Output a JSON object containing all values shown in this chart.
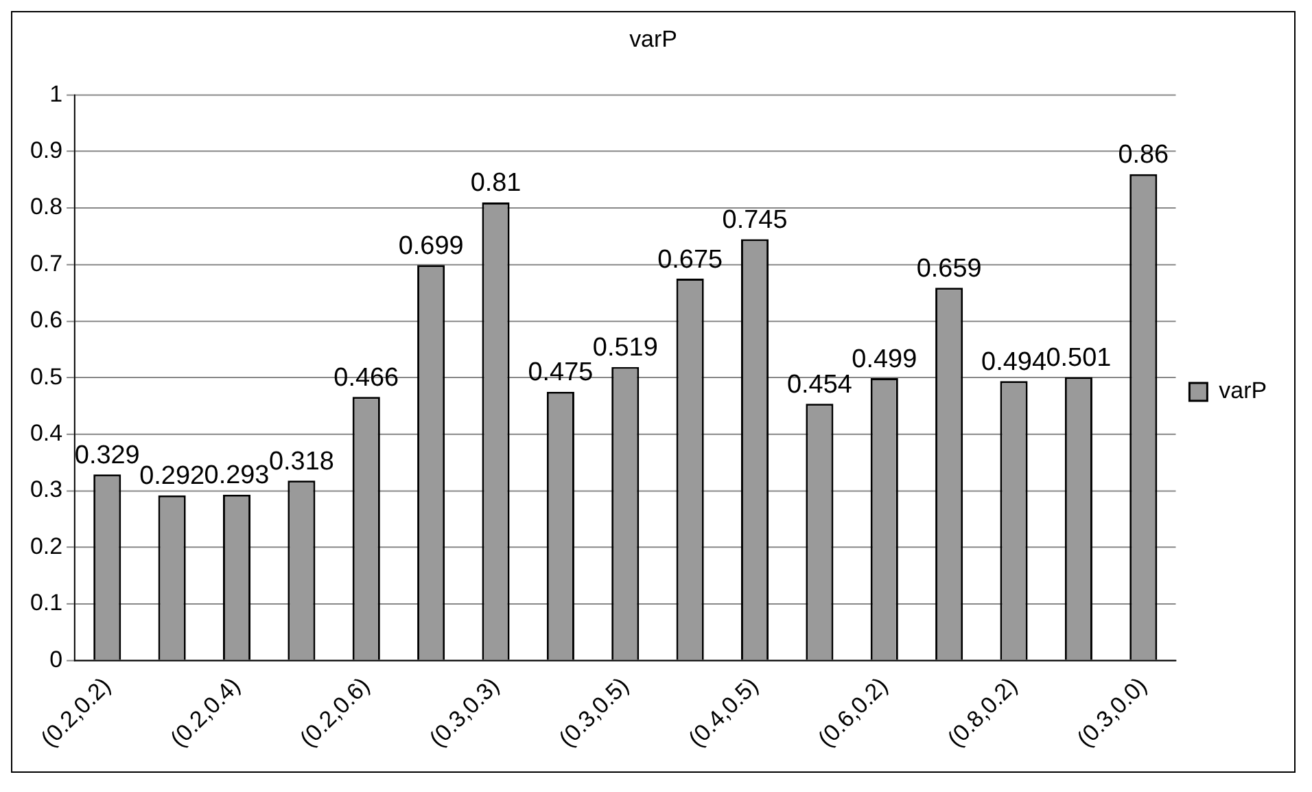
{
  "chart_data": {
    "type": "bar",
    "title": "varP",
    "categories": [
      "(0.2,0.2)",
      null,
      "(0.2,0.4)",
      null,
      "(0.2,0.6)",
      null,
      "(0.3,0.3)",
      null,
      "(0.3,0.5)",
      null,
      "(0.4,0.5)",
      null,
      "(0.6,0.2)",
      null,
      "(0.8,0.2)",
      null,
      "(0.3,0.0)"
    ],
    "series": [
      {
        "name": "varP",
        "color": "#9a9a9a",
        "values": [
          0.329,
          0.292,
          0.293,
          0.318,
          0.466,
          0.699,
          0.81,
          0.475,
          0.519,
          0.675,
          0.745,
          0.454,
          0.499,
          0.659,
          0.494,
          0.501,
          0.86
        ]
      }
    ],
    "ylim": [
      0,
      1
    ],
    "yticks": [
      0,
      0.1,
      0.2,
      0.3,
      0.4,
      0.5,
      0.6,
      0.7,
      0.8,
      0.9,
      1
    ],
    "grid": "y",
    "legend": "right",
    "data_labels": true
  }
}
